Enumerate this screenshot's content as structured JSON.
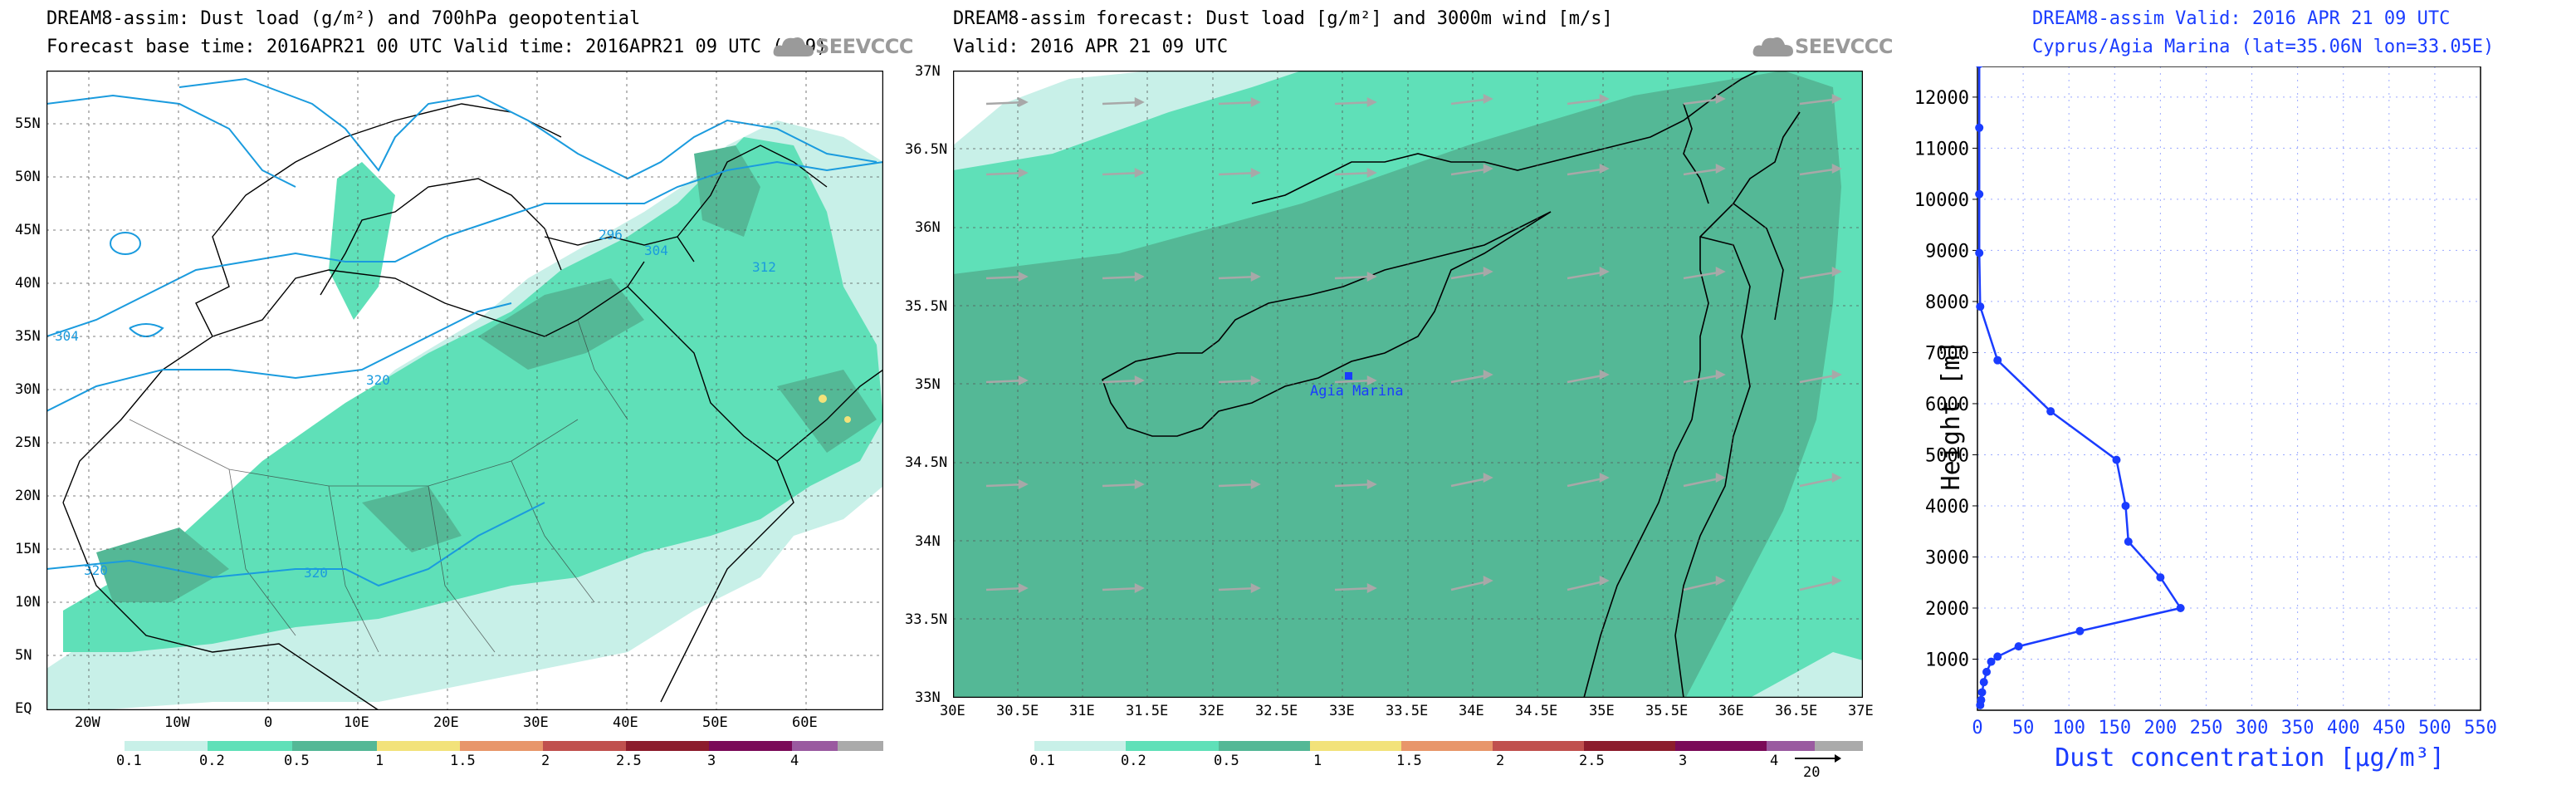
{
  "panel1": {
    "title_line1": "DREAM8-assim: Dust load (g/m²) and 700hPa geopotential",
    "title_line2": "Forecast base time: 2016APR21 00 UTC  Valid time: 2016APR21 09 UTC  (+09)",
    "logo": "SEEVCCC",
    "y_ticks": [
      "55N",
      "50N",
      "45N",
      "40N",
      "35N",
      "30N",
      "25N",
      "20N",
      "15N",
      "10N",
      "5N",
      "EQ"
    ],
    "x_ticks": [
      "20W",
      "10W",
      "0",
      "10E",
      "20E",
      "30E",
      "40E",
      "50E",
      "60E"
    ],
    "contour_labels": [
      "296",
      "304",
      "312",
      "320",
      "320",
      "320",
      "304"
    ],
    "colorbar_labels": [
      "0.1",
      "0.2",
      "0.5",
      "1",
      "1.5",
      "2",
      "2.5",
      "3",
      "4"
    ]
  },
  "panel2": {
    "title_line1": "DREAM8-assim forecast: Dust load [g/m²] and 3000m wind [m/s]",
    "title_line2": "Valid: 2016 APR 21  09 UTC",
    "logo": "SEEVCCC",
    "station_label": "Agia Marina",
    "y_ticks": [
      "37N",
      "36.5N",
      "36N",
      "35.5N",
      "35N",
      "34.5N",
      "34N",
      "33.5N",
      "33N"
    ],
    "x_ticks": [
      "30E",
      "30.5E",
      "31E",
      "31.5E",
      "32E",
      "32.5E",
      "33E",
      "33.5E",
      "34E",
      "34.5E",
      "35E",
      "35.5E",
      "36E",
      "36.5E",
      "37E"
    ],
    "colorbar_labels": [
      "0.1",
      "0.2",
      "0.5",
      "1",
      "1.5",
      "2",
      "2.5",
      "3",
      "4"
    ],
    "wind_ref": "20"
  },
  "colors": {
    "c01": "#c8f0e8",
    "c02": "#5fe0b8",
    "c05": "#54b896",
    "c1": "#f2e27a",
    "c15": "#e8966a",
    "c2": "#c0504e",
    "c25": "#8c1c2c",
    "c3": "#7a0a58",
    "c4": "#9a5aa0",
    "c5": "#aaaaaa",
    "profile": "#1a3cff",
    "contour": "#1a9bde"
  },
  "chart_data": {
    "type": "line",
    "title": "DREAM8-assim   Valid: 2016 APR 21  09 UTC",
    "subtitle": "Cyprus/Agia Marina (lat=35.06N lon=33.05E)",
    "xlabel": "Dust concentration [μg/m³]",
    "ylabel": "Height [m]",
    "xlim": [
      0,
      550
    ],
    "ylim": [
      0,
      12600
    ],
    "x_ticks": [
      0,
      50,
      100,
      150,
      200,
      250,
      300,
      350,
      400,
      450,
      500,
      550
    ],
    "y_ticks": [
      1000,
      2000,
      3000,
      4000,
      5000,
      6000,
      7000,
      8000,
      9000,
      10000,
      11000,
      12000
    ],
    "grid": true,
    "series": [
      {
        "x": [
          3,
          4,
          5,
          7,
          10,
          15,
          22,
          45,
          112,
          222,
          200,
          165,
          162,
          152,
          80,
          22,
          3,
          2,
          2,
          2,
          2,
          2
        ],
        "y": [
          100,
          200,
          350,
          550,
          750,
          950,
          1050,
          1250,
          1550,
          2000,
          2600,
          3300,
          4000,
          4900,
          5850,
          6850,
          7900,
          8950,
          10100,
          11400,
          12650,
          12650
        ]
      }
    ]
  }
}
